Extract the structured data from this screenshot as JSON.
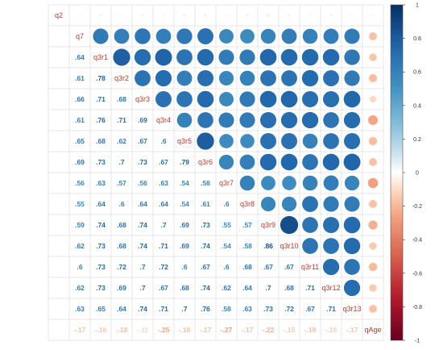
{
  "chart_data": {
    "type": "heatmap",
    "variables": [
      "q2",
      "q7",
      "q3r1",
      "q3r2",
      "q3r3",
      "q3r4",
      "q3r5",
      "q3r6",
      "q3r7",
      "q3r8",
      "q3r9",
      "q3r10",
      "q3r11",
      "q3r12",
      "q3r13",
      "qAge"
    ],
    "lower_values": [
      [
        null
      ],
      [
        null,
        null
      ],
      [
        null,
        0.64
      ],
      [
        null,
        0.61,
        0.78
      ],
      [
        null,
        0.66,
        0.71,
        0.68
      ],
      [
        null,
        0.61,
        0.76,
        0.71,
        0.69
      ],
      [
        null,
        0.65,
        0.68,
        0.62,
        0.67,
        0.6
      ],
      [
        null,
        0.69,
        0.73,
        0.7,
        0.73,
        0.67,
        0.79
      ],
      [
        null,
        0.56,
        0.63,
        0.57,
        0.56,
        0.63,
        0.54,
        0.58
      ],
      [
        null,
        0.55,
        0.64,
        0.6,
        0.64,
        0.64,
        0.54,
        0.61,
        0.6
      ],
      [
        null,
        0.59,
        0.74,
        0.68,
        0.74,
        0.7,
        0.69,
        0.73,
        0.55,
        0.57
      ],
      [
        null,
        0.62,
        0.73,
        0.68,
        0.74,
        0.71,
        0.69,
        0.74,
        0.54,
        0.58,
        0.86
      ],
      [
        null,
        0.6,
        0.73,
        0.72,
        0.7,
        0.72,
        0.6,
        0.67,
        0.6,
        0.68,
        0.67,
        0.67
      ],
      [
        null,
        0.62,
        0.73,
        0.69,
        0.7,
        0.67,
        0.68,
        0.74,
        0.62,
        0.64,
        0.7,
        0.68,
        0.71
      ],
      [
        null,
        0.63,
        0.65,
        0.64,
        0.74,
        0.71,
        0.7,
        0.76,
        0.58,
        0.63,
        0.73,
        0.72,
        0.67,
        0.71
      ],
      [
        null,
        -0.17,
        -0.16,
        -0.18,
        -0.11,
        -0.25,
        -0.18,
        -0.17,
        -0.27,
        -0.17,
        -0.22,
        -0.15,
        -0.19,
        -0.15,
        -0.17
      ]
    ],
    "upper_values": [
      [
        null,
        0.02,
        0.03,
        0.02,
        0.03,
        0.02,
        0.03,
        0.03,
        0.02,
        0.03,
        0.04,
        0.03,
        0.02,
        0.03,
        0.02,
        0.02
      ],
      [
        null,
        null,
        0.64,
        0.61,
        0.66,
        0.61,
        0.65,
        0.69,
        0.56,
        0.55,
        0.59,
        0.62,
        0.6,
        0.62,
        0.63,
        -0.17
      ],
      [
        null,
        null,
        null,
        0.78,
        0.71,
        0.76,
        0.68,
        0.73,
        0.63,
        0.64,
        0.74,
        0.73,
        0.73,
        0.73,
        0.65,
        -0.16
      ],
      [
        null,
        null,
        null,
        null,
        0.68,
        0.71,
        0.62,
        0.7,
        0.57,
        0.6,
        0.68,
        0.68,
        0.72,
        0.69,
        0.64,
        -0.18
      ],
      [
        null,
        null,
        null,
        null,
        null,
        0.69,
        0.67,
        0.73,
        0.56,
        0.64,
        0.74,
        0.74,
        0.7,
        0.7,
        0.74,
        -0.11
      ],
      [
        null,
        null,
        null,
        null,
        null,
        null,
        0.6,
        0.67,
        0.63,
        0.64,
        0.7,
        0.71,
        0.72,
        0.67,
        0.71,
        -0.25
      ],
      [
        null,
        null,
        null,
        null,
        null,
        null,
        null,
        0.79,
        0.54,
        0.54,
        0.69,
        0.69,
        0.6,
        0.68,
        0.7,
        -0.18
      ],
      [
        null,
        null,
        null,
        null,
        null,
        null,
        null,
        null,
        0.58,
        0.61,
        0.73,
        0.74,
        0.67,
        0.74,
        0.76,
        -0.17
      ],
      [
        null,
        null,
        null,
        null,
        null,
        null,
        null,
        null,
        null,
        0.6,
        0.55,
        0.54,
        0.6,
        0.62,
        0.58,
        -0.27
      ],
      [
        null,
        null,
        null,
        null,
        null,
        null,
        null,
        null,
        null,
        null,
        0.57,
        0.58,
        0.68,
        0.64,
        0.63,
        -0.17
      ],
      [
        null,
        null,
        null,
        null,
        null,
        null,
        null,
        null,
        null,
        null,
        null,
        0.86,
        0.67,
        0.7,
        0.73,
        -0.22
      ],
      [
        null,
        null,
        null,
        null,
        null,
        null,
        null,
        null,
        null,
        null,
        null,
        null,
        0.67,
        0.68,
        0.72,
        -0.15
      ],
      [
        null,
        null,
        null,
        null,
        null,
        null,
        null,
        null,
        null,
        null,
        null,
        null,
        null,
        0.71,
        0.67,
        -0.19
      ],
      [
        null,
        null,
        null,
        null,
        null,
        null,
        null,
        null,
        null,
        null,
        null,
        null,
        null,
        null,
        0.71,
        -0.15
      ],
      [
        null,
        null,
        null,
        null,
        null,
        null,
        null,
        null,
        null,
        null,
        null,
        null,
        null,
        null,
        null,
        -0.17
      ],
      [
        null
      ]
    ],
    "colorbar": {
      "ticks": [
        "1",
        "0.8",
        "0.6",
        "0.4",
        "0.2",
        "0",
        "-0.2",
        "-0.4",
        "-0.6",
        "-0.8",
        "-1"
      ],
      "range": [
        -1,
        1
      ],
      "color_neg": "#67001f",
      "color_mid": "#ffffff",
      "color_pos": "#053061"
    },
    "upper_method": "circle",
    "lower_method": "number",
    "label_color": "#c0392b",
    "grid": true
  }
}
